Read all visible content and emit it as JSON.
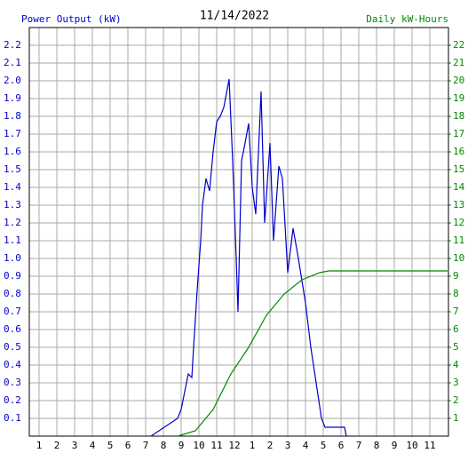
{
  "chart_data": {
    "type": "line",
    "title": "11/14/2022",
    "ylabel": "Power Output (kW)",
    "y2label": "Daily kW-Hours",
    "xlim": [
      0.45,
      24.05
    ],
    "ylim": [
      0,
      2.3
    ],
    "y2lim": [
      0,
      23
    ],
    "xticks": [
      1,
      2,
      3,
      4,
      5,
      6,
      7,
      8,
      9,
      10,
      11,
      12,
      {
        "value": 13,
        "label": "1"
      },
      {
        "value": 14,
        "label": "2"
      },
      {
        "value": 15,
        "label": "3"
      },
      {
        "value": 16,
        "label": "4"
      },
      {
        "value": 17,
        "label": "5"
      },
      {
        "value": 18,
        "label": "6"
      },
      {
        "value": 19,
        "label": "7"
      },
      {
        "value": 20,
        "label": "8"
      },
      {
        "value": 21,
        "label": "9"
      },
      {
        "value": 22,
        "label": "10"
      },
      {
        "value": 23,
        "label": "11"
      }
    ],
    "yticks": [
      0.1,
      0.2,
      0.3,
      0.4,
      0.5,
      0.6,
      0.7,
      0.8,
      0.9,
      {
        "value": 1,
        "label": "1.0"
      },
      1.1,
      1.2,
      1.3,
      1.4,
      1.5,
      1.6,
      1.7,
      1.8,
      1.9,
      {
        "value": 2,
        "label": "2.0"
      },
      2.1,
      2.2
    ],
    "y2ticks": [
      1,
      2,
      3,
      4,
      5,
      6,
      7,
      8,
      9,
      10,
      11,
      12,
      13,
      14,
      15,
      16,
      17,
      18,
      19,
      20,
      21,
      22
    ],
    "grid": true,
    "series": [
      {
        "color": "#0000cc",
        "x": [
          7.3,
          8.8,
          9.0,
          9.2,
          9.4,
          9.6,
          9.7,
          9.9,
          10.1,
          10.2,
          10.4,
          10.6,
          10.8,
          11.0,
          11.2,
          11.4,
          11.7,
          11.9,
          12.1,
          12.2,
          12.4,
          12.6,
          12.8,
          13.0,
          13.2,
          13.5,
          13.7,
          14.0,
          14.2,
          14.5,
          14.7,
          15.0,
          15.3,
          15.6,
          16.0,
          16.3,
          16.6,
          16.9,
          17.1,
          18.2,
          18.3
        ],
        "values": [
          0,
          0.1,
          0.15,
          0.25,
          0.35,
          0.33,
          0.5,
          0.82,
          1.1,
          1.3,
          1.45,
          1.38,
          1.6,
          1.77,
          1.8,
          1.85,
          2.01,
          1.55,
          1.0,
          0.7,
          1.55,
          1.65,
          1.76,
          1.4,
          1.25,
          1.94,
          1.2,
          1.65,
          1.1,
          1.52,
          1.45,
          0.92,
          1.17,
          1.0,
          0.75,
          0.5,
          0.3,
          0.1,
          0.05,
          0.05,
          0
        ]
      },
      {
        "color": "#008800",
        "axis": "y2",
        "x": [
          8.8,
          9.8,
          10.8,
          11.8,
          12.8,
          13.8,
          14.8,
          15.8,
          16.8,
          17.3,
          24.0
        ],
        "values": [
          0,
          0.3,
          1.5,
          3.5,
          5,
          6.8,
          8,
          8.8,
          9.2,
          9.3,
          9.3
        ]
      }
    ]
  }
}
